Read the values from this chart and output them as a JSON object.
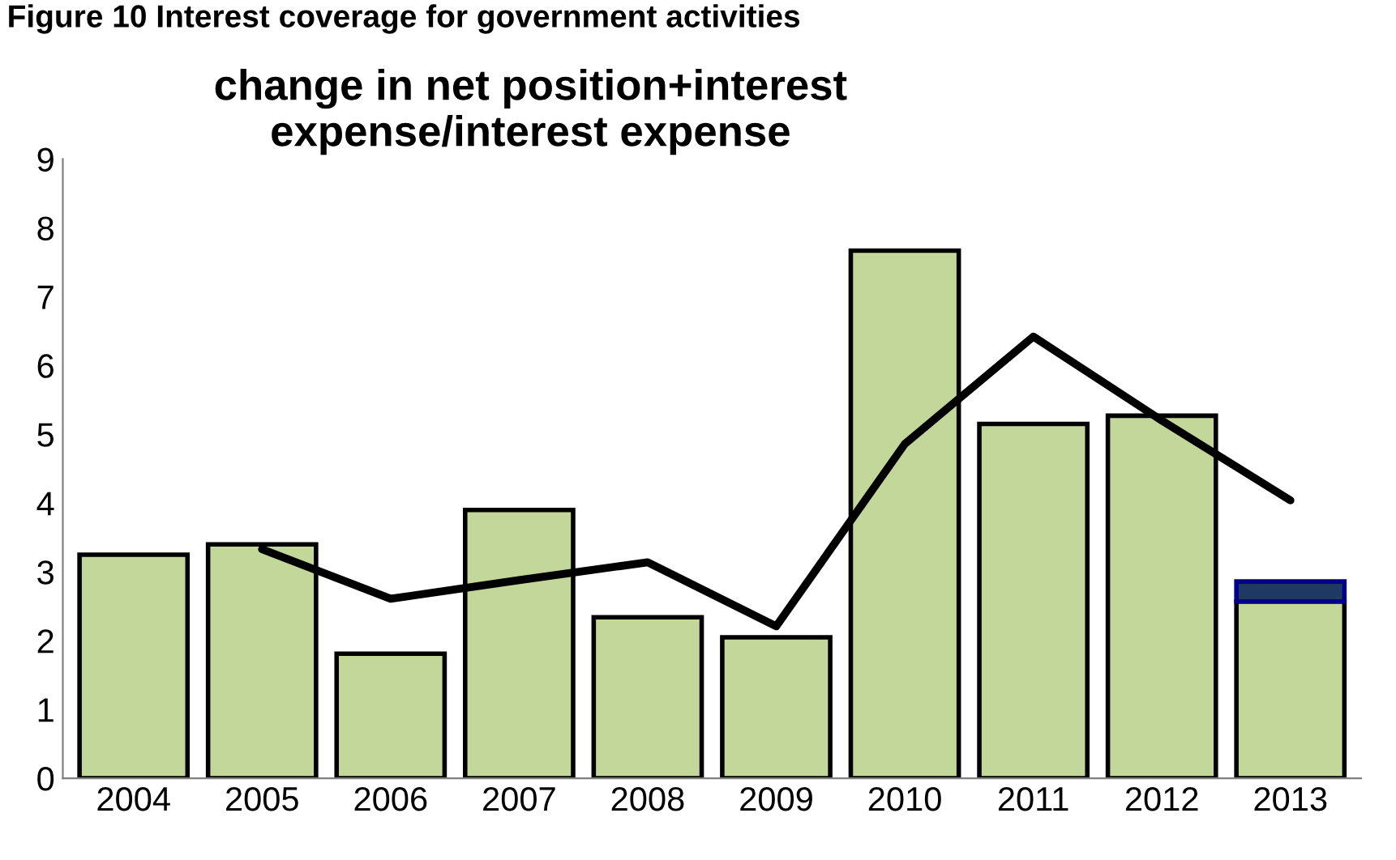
{
  "chart_data": {
    "type": "bar",
    "title": "change in net position+interest\nexpense/interest expense",
    "annotations": [
      "Figure 10 Interest coverage for government activities"
    ],
    "categories": [
      "2004",
      "2005",
      "2006",
      "2007",
      "2008",
      "2009",
      "2010",
      "2011",
      "2012",
      "2013"
    ],
    "stacked": true,
    "series": [
      {
        "color": "#c4d79b",
        "values": [
          3.25,
          3.4,
          1.81,
          3.9,
          2.34,
          2.05,
          7.67,
          5.15,
          5.27,
          2.57
        ]
      },
      {
        "color": "#1f3864",
        "values": [
          null,
          null,
          null,
          null,
          null,
          null,
          null,
          null,
          null,
          0.29
        ]
      },
      {
        "type": "line",
        "color": "#000000",
        "values": [
          null,
          3.33,
          2.61,
          2.88,
          3.14,
          2.21,
          4.86,
          6.42,
          5.2,
          4.04
        ]
      }
    ],
    "ylim": [
      0,
      9
    ],
    "yticks": [
      0,
      1,
      2,
      3,
      4,
      5,
      6,
      7,
      8,
      9
    ],
    "grid": false,
    "legend": false,
    "marker": "none"
  }
}
